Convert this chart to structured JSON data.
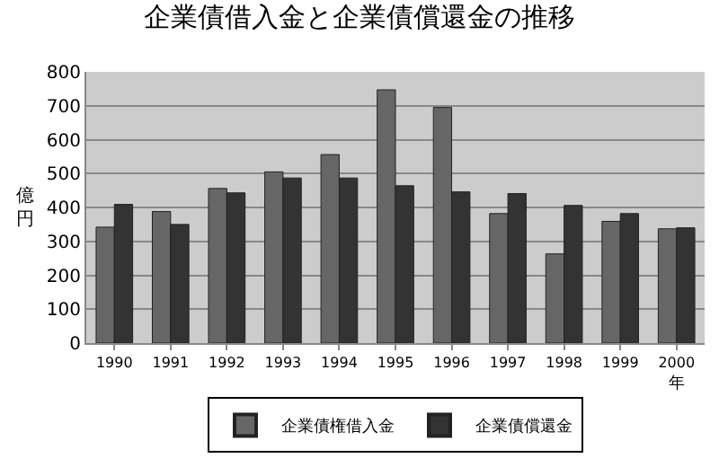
{
  "chart_data": {
    "type": "bar",
    "title": "企業債借入金と企業債償還金の推移",
    "xlabel": "年",
    "ylabel": "億円",
    "categories": [
      "1990",
      "1991",
      "1992",
      "1993",
      "1994",
      "1995",
      "1996",
      "1997",
      "1998",
      "1999",
      "2000"
    ],
    "series": [
      {
        "name": "企業債権借入金",
        "color": "#666666",
        "values": [
          342,
          388,
          456,
          505,
          556,
          747,
          695,
          382,
          263,
          359,
          337
        ]
      },
      {
        "name": "企業債償還金",
        "color": "#333333",
        "values": [
          409,
          350,
          443,
          487,
          487,
          464,
          446,
          441,
          406,
          382,
          340
        ]
      }
    ],
    "ylim": [
      0,
      800
    ],
    "yticks": [
      0,
      100,
      200,
      300,
      400,
      500,
      600,
      700,
      800
    ],
    "grid": "y",
    "legend": "bottom"
  }
}
